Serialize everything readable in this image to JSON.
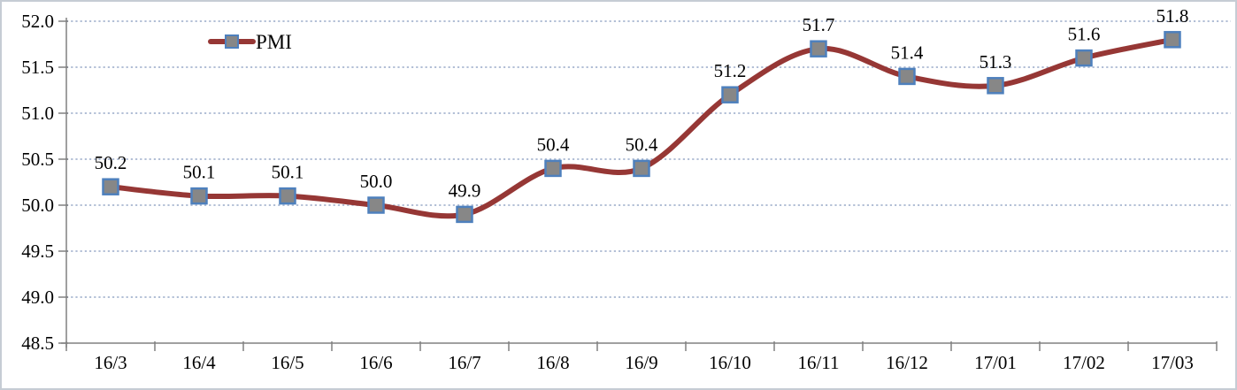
{
  "chart_data": {
    "type": "line",
    "title": "",
    "xlabel": "",
    "ylabel": "",
    "categories": [
      "16/3",
      "16/4",
      "16/5",
      "16/6",
      "16/7",
      "16/8",
      "16/9",
      "16/10",
      "16/11",
      "16/12",
      "17/01",
      "17/02",
      "17/03"
    ],
    "series": [
      {
        "name": "PMI",
        "values": [
          50.2,
          50.1,
          50.1,
          50.0,
          49.9,
          50.4,
          50.4,
          51.2,
          51.7,
          51.4,
          51.3,
          51.6,
          51.8
        ],
        "labels": [
          "50.2",
          "50.1",
          "50.1",
          "50.0",
          "49.9",
          "50.4",
          "50.4",
          "51.2",
          "51.7",
          "51.4",
          "51.3",
          "51.6",
          "51.8"
        ]
      }
    ],
    "ylim": [
      48.5,
      52.0
    ],
    "ytick_step": 0.5,
    "ytick_labels": [
      "48.5",
      "49.0",
      "49.5",
      "50.0",
      "50.5",
      "51.0",
      "51.5",
      "52.0"
    ],
    "grid": "horizontal-dotted",
    "smooth": true,
    "legend_position": "top-inside-left",
    "colors": {
      "line": "#963735",
      "marker_fill": "#878787",
      "marker_border": "#4e80bd",
      "gridline": "#b2bfd6",
      "axis": "#808080",
      "text": "#000000",
      "frame_border": "#c6ccd4",
      "background": "#ffffff"
    }
  }
}
